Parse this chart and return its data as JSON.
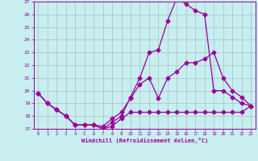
{
  "xlabel": "Windchill (Refroidissement éolien,°C)",
  "bg_color": "#c8eef0",
  "line_color": "#990099",
  "xlim": [
    -0.5,
    23.5
  ],
  "ylim": [
    17,
    27
  ],
  "yticks": [
    17,
    18,
    19,
    20,
    21,
    22,
    23,
    24,
    25,
    26,
    27
  ],
  "xticks": [
    0,
    1,
    2,
    3,
    4,
    5,
    6,
    7,
    8,
    9,
    10,
    11,
    12,
    13,
    14,
    15,
    16,
    17,
    18,
    19,
    20,
    21,
    22,
    23
  ],
  "line1_x": [
    0,
    1,
    2,
    3,
    4,
    5,
    6,
    7,
    8,
    9,
    10,
    11,
    12,
    13,
    14,
    15,
    16,
    17,
    18,
    19,
    20,
    21,
    22,
    23
  ],
  "line1_y": [
    19.8,
    19.0,
    18.5,
    18.0,
    17.3,
    17.3,
    17.3,
    17.0,
    17.2,
    17.8,
    18.3,
    18.3,
    18.3,
    18.3,
    18.3,
    18.3,
    18.3,
    18.3,
    18.3,
    18.3,
    18.3,
    18.3,
    18.3,
    18.8
  ],
  "line2_x": [
    0,
    1,
    2,
    3,
    4,
    5,
    6,
    7,
    8,
    9,
    10,
    11,
    12,
    13,
    14,
    15,
    16,
    17,
    18,
    19,
    20,
    21,
    22,
    23
  ],
  "line2_y": [
    19.8,
    19.0,
    18.5,
    18.0,
    17.3,
    17.3,
    17.3,
    17.2,
    17.8,
    18.3,
    19.4,
    20.5,
    21.0,
    19.4,
    21.0,
    21.5,
    22.2,
    22.2,
    22.5,
    23.0,
    21.0,
    20.0,
    19.5,
    18.8
  ],
  "line3_x": [
    0,
    1,
    2,
    3,
    4,
    5,
    6,
    7,
    8,
    9,
    10,
    11,
    12,
    13,
    14,
    15,
    16,
    17,
    18,
    19,
    20,
    21,
    22,
    23
  ],
  "line3_y": [
    19.8,
    19.0,
    18.5,
    18.0,
    17.3,
    17.3,
    17.3,
    17.0,
    17.5,
    18.0,
    19.5,
    21.0,
    23.0,
    23.2,
    25.5,
    27.3,
    26.8,
    26.3,
    26.0,
    20.0,
    20.0,
    19.5,
    19.0,
    18.8
  ]
}
